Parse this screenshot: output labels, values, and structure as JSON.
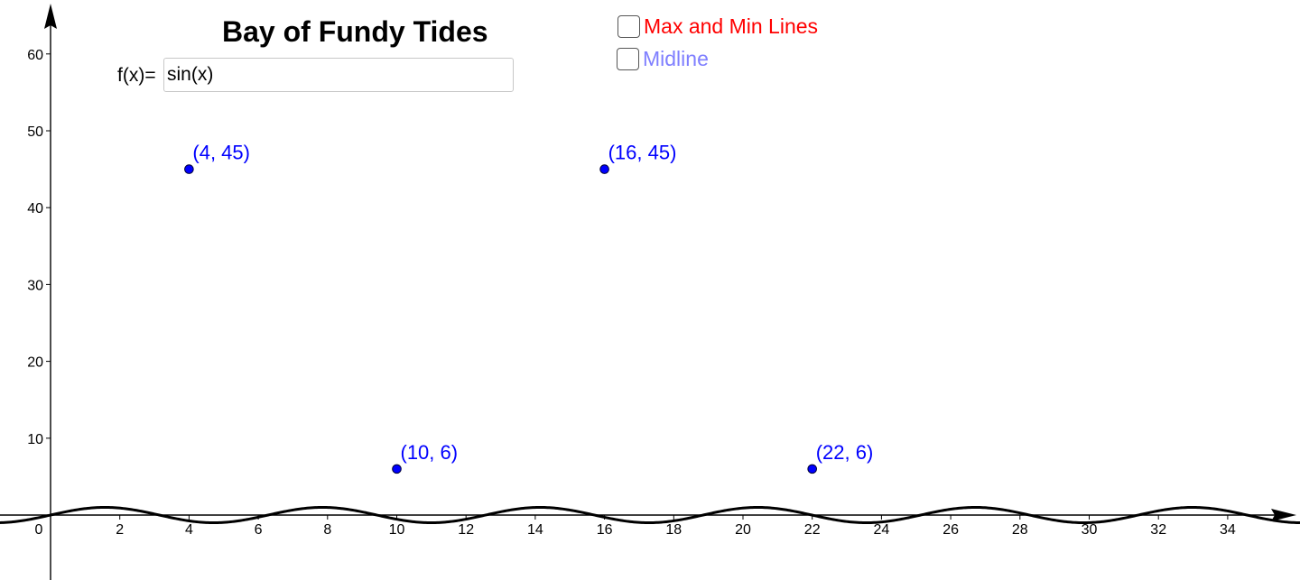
{
  "title": "Bay of Fundy Tides",
  "function_input": {
    "label": "f(x)=",
    "value": "sin(x)"
  },
  "checkboxes": [
    {
      "label": "Max and Min Lines",
      "checked": false,
      "color": "#ff0000"
    },
    {
      "label": "Midline",
      "checked": false,
      "color": "#7f7fff"
    }
  ],
  "colors": {
    "points": "#0000ff",
    "curve": "#000000",
    "axes": "#000000"
  },
  "chart_data": {
    "type": "scatter",
    "title": "Bay of Fundy Tides",
    "xlabel": "",
    "ylabel": "",
    "x_ticks": [
      0,
      2,
      4,
      6,
      8,
      10,
      12,
      14,
      16,
      18,
      20,
      22,
      24,
      26,
      28,
      30,
      32,
      34
    ],
    "y_ticks": [
      10,
      20,
      30,
      40,
      50,
      60
    ],
    "xlim": [
      -1.2,
      36.3
    ],
    "ylim": [
      -1.2,
      66
    ],
    "grid": false,
    "series": [
      {
        "type": "scatter",
        "points": [
          {
            "x": 4,
            "y": 45,
            "label": "(4, 45)"
          },
          {
            "x": 10,
            "y": 6,
            "label": "(10, 6)"
          },
          {
            "x": 16,
            "y": 45,
            "label": "(16, 45)"
          },
          {
            "x": 22,
            "y": 6,
            "label": "(22, 6)"
          }
        ]
      },
      {
        "type": "line",
        "function": "sin(x)"
      }
    ]
  }
}
